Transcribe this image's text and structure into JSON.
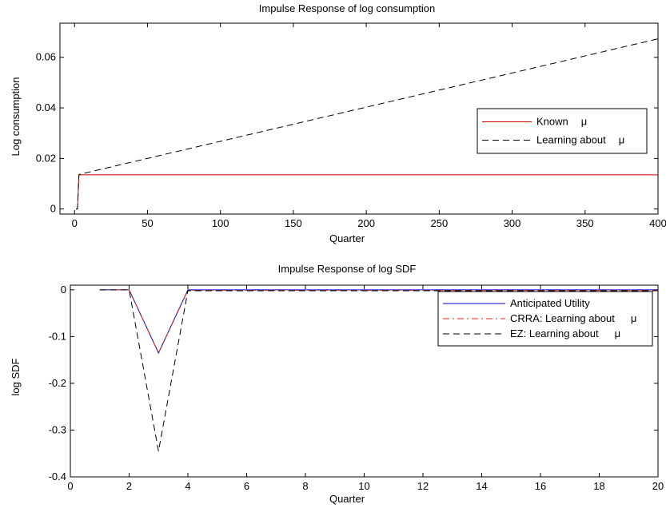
{
  "chart_data": [
    {
      "type": "line",
      "title": "Impulse Response of log consumption",
      "xlabel": "Quarter",
      "ylabel": "Log consumption",
      "xlim": [
        -10,
        400
      ],
      "ylim": [
        -0.002,
        0.0735
      ],
      "xticks": [
        0,
        50,
        100,
        150,
        200,
        250,
        300,
        350,
        400
      ],
      "yticks": [
        0,
        0.02,
        0.04,
        0.06
      ],
      "xtick_labels": [
        "0",
        "50",
        "100",
        "150",
        "200",
        "250",
        "300",
        "350",
        "400"
      ],
      "ytick_labels": [
        "0",
        "0.02",
        "0.04",
        "0.06"
      ],
      "grid": false,
      "legend_position": "right",
      "series": [
        {
          "name": "Known μ",
          "legend_text": "Known",
          "legend_symbol": "μ",
          "color": "#cc0000",
          "dash": "solid",
          "x": [
            1,
            2,
            3,
            4,
            400
          ],
          "y": [
            0,
            0,
            0.0135,
            0.0135,
            0.0135
          ]
        },
        {
          "name": "Learning about μ",
          "legend_text": "Learning about",
          "legend_symbol": "μ",
          "color": "#000000",
          "dash": "dashed",
          "x": [
            1,
            2,
            3,
            4,
            400
          ],
          "y": [
            0,
            0,
            0.0135,
            0.0138,
            0.0673
          ]
        }
      ]
    },
    {
      "type": "line",
      "title": "Impulse Response of log SDF",
      "xlabel": "Quarter",
      "ylabel": "log SDF",
      "xlim": [
        0,
        20
      ],
      "ylim": [
        -0.4,
        0.01
      ],
      "xticks": [
        0,
        2,
        4,
        6,
        8,
        10,
        12,
        14,
        16,
        18,
        20
      ],
      "yticks": [
        0,
        -0.1,
        -0.2,
        -0.3,
        -0.4
      ],
      "xtick_labels": [
        "0",
        "2",
        "4",
        "6",
        "8",
        "10",
        "12",
        "14",
        "16",
        "18",
        "20"
      ],
      "ytick_labels": [
        "0",
        "-0.1",
        "-0.2",
        "-0.3",
        "-0.4"
      ],
      "grid": false,
      "legend_position": "top-right",
      "series": [
        {
          "name": "Anticipated Utility",
          "legend_text": "Anticipated Utility",
          "legend_symbol": "",
          "color": "#0000cc",
          "dash": "solid",
          "x": [
            1,
            2,
            3,
            4,
            20
          ],
          "y": [
            0,
            0,
            -0.135,
            0,
            0
          ]
        },
        {
          "name": "CRRA: Learning about μ",
          "legend_text": "CRRA: Learning about",
          "legend_symbol": "μ",
          "color": "#e02020",
          "dash": "dashdot",
          "x": [
            1,
            2,
            3,
            4,
            20
          ],
          "y": [
            0,
            0,
            -0.135,
            -0.001,
            -0.001
          ]
        },
        {
          "name": "EZ: Learning about μ",
          "legend_text": "EZ: Learning about",
          "legend_symbol": "μ",
          "color": "#000000",
          "dash": "dashed",
          "x": [
            1,
            2,
            3,
            4,
            20
          ],
          "y": [
            0,
            0,
            -0.345,
            -0.002,
            -0.002
          ]
        }
      ]
    }
  ]
}
